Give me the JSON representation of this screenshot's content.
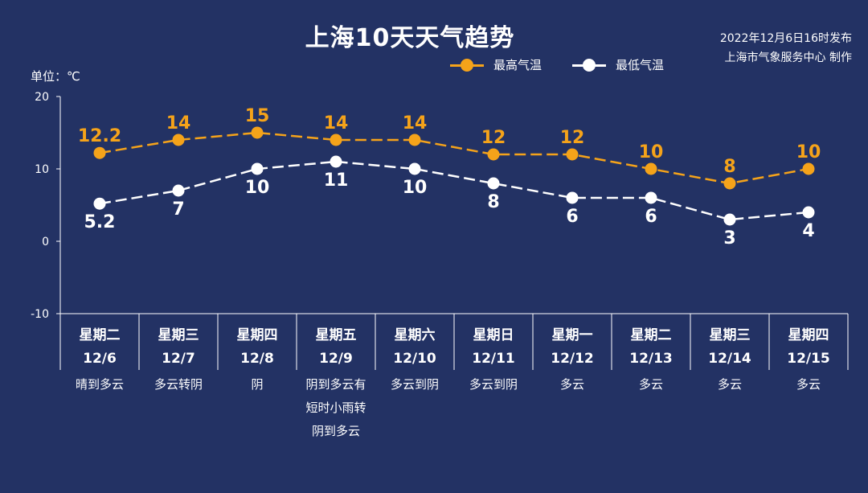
{
  "header": {
    "title": "上海10天天气趋势",
    "publish_line1": "2022年12月6日16时发布",
    "publish_line2": "上海市气象服务中心 制作"
  },
  "axis": {
    "unit_label": "单位：℃"
  },
  "colors": {
    "background": "#233264",
    "high": "#f5a31a",
    "low": "#ffffff",
    "axis": "#ffffff"
  },
  "chart_data": {
    "type": "line",
    "ylim": [
      -10,
      20
    ],
    "yticks": [
      20,
      10,
      0,
      -10
    ],
    "categories": [
      {
        "weekday": "星期二",
        "date": "12/6",
        "weather": [
          "晴到多云"
        ]
      },
      {
        "weekday": "星期三",
        "date": "12/7",
        "weather": [
          "多云转阴"
        ]
      },
      {
        "weekday": "星期四",
        "date": "12/8",
        "weather": [
          "阴"
        ]
      },
      {
        "weekday": "星期五",
        "date": "12/9",
        "weather": [
          "阴到多云有",
          "短时小雨转",
          "阴到多云"
        ]
      },
      {
        "weekday": "星期六",
        "date": "12/10",
        "weather": [
          "多云到阴"
        ]
      },
      {
        "weekday": "星期日",
        "date": "12/11",
        "weather": [
          "多云到阴"
        ]
      },
      {
        "weekday": "星期一",
        "date": "12/12",
        "weather": [
          "多云"
        ]
      },
      {
        "weekday": "星期二",
        "date": "12/13",
        "weather": [
          "多云"
        ]
      },
      {
        "weekday": "星期三",
        "date": "12/14",
        "weather": [
          "多云"
        ]
      },
      {
        "weekday": "星期四",
        "date": "12/15",
        "weather": [
          "多云"
        ]
      }
    ],
    "series": [
      {
        "name": "最高气温",
        "values": [
          12.2,
          14,
          15,
          14,
          14,
          12,
          12,
          10,
          8,
          10
        ],
        "labels": [
          "12.2",
          "14",
          "15",
          "14",
          "14",
          "12",
          "12",
          "10",
          "8",
          "10"
        ],
        "label_position": "above"
      },
      {
        "name": "最低气温",
        "values": [
          5.2,
          7,
          10,
          11,
          10,
          8,
          6,
          6,
          3,
          4
        ],
        "labels": [
          "5.2",
          "7",
          "10",
          "11",
          "10",
          "8",
          "6",
          "6",
          "3",
          "4"
        ],
        "label_position": "below"
      }
    ],
    "legend_position": "top-right",
    "grid": false
  }
}
